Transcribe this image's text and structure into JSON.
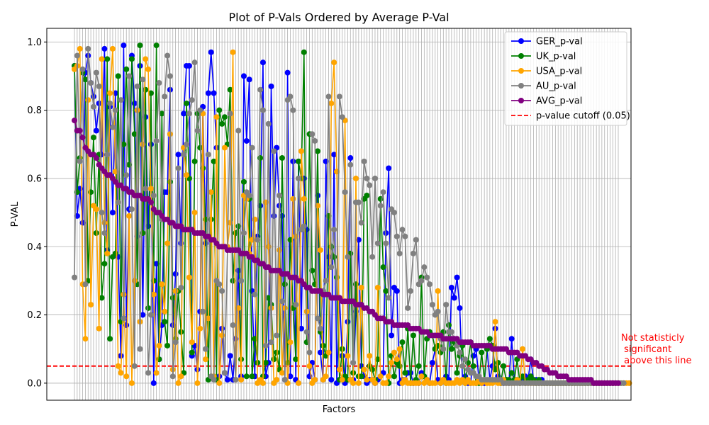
{
  "chart_data": {
    "type": "line",
    "title": "Plot of P-Vals Ordered by Average P-Val",
    "xlabel": "Factors",
    "ylabel": "P-VAL",
    "ylim": [
      -0.05,
      1.04
    ],
    "yticks": [
      "0.0",
      "0.2",
      "0.4",
      "0.6",
      "0.8",
      "1.0"
    ],
    "grid": true,
    "legend_position": "top-right",
    "n_factors": 200,
    "series": [
      {
        "name": "GER_p-val",
        "color": "#0000ff",
        "values": [
          0.93,
          0.49,
          0.57,
          0.47,
          0.91,
          0.96,
          0.88,
          0.84,
          0.74,
          0.82,
          0.67,
          0.98,
          0.39,
          0.81,
          0.5,
          0.85,
          0.37,
          0.08,
          0.99,
          0.17,
          0.51,
          0.96,
          0.82,
          0.43,
          0.93,
          0.2,
          0.78,
          0.46,
          0.7,
          0.0,
          0.35,
          0.07,
          0.17,
          0.56,
          0.56,
          0.86,
          0.17,
          0.32,
          0.67,
          0.41,
          0.79,
          0.93,
          0.93,
          0.08,
          0.11,
          0.04,
          0.21,
          0.81,
          0.41,
          0.85,
          0.97,
          0.85,
          0.69,
          0.02,
          0.16,
          0.03,
          0.01,
          0.08,
          0.01,
          0.13,
          0.33,
          0.02,
          0.9,
          0.71,
          0.89,
          0.27,
          0.02,
          0.43,
          0.52,
          0.94,
          0.02,
          0.06,
          0.87,
          0.49,
          0.69,
          0.52,
          0.49,
          0.01,
          0.91,
          0.02,
          0.65,
          0.01,
          0.65,
          0.16,
          0.6,
          0.45,
          0.02,
          0.06,
          0.01,
          0.55,
          0.09,
          0.01,
          0.65,
          0.37,
          0.01,
          0.67,
          0.0,
          0.25,
          0.08,
          0.0,
          0.18,
          0.66,
          0.01,
          0.21,
          0.42,
          0.05,
          0.02,
          0.0,
          0.01,
          0.01,
          0.0,
          0.01,
          0.02,
          0.03,
          0.44,
          0.63,
          0.14,
          0.28,
          0.27,
          0.0,
          0.01,
          0.01,
          0.03,
          0.03,
          0.0,
          0.01,
          0.0,
          0.03,
          0.02,
          0.01,
          0.0,
          0.06,
          0.1,
          0.01,
          0.0,
          0.01,
          0.02,
          0.01,
          0.28,
          0.25,
          0.31,
          0.22,
          0.01,
          0.02,
          0.0,
          0.0,
          0.08,
          0.1,
          0.01,
          0.0,
          0.0,
          0.1,
          0.01,
          0.05,
          0.16,
          0.02,
          0.0,
          0.0,
          0.01,
          0.0,
          0.13,
          0.01,
          0.01,
          0.01,
          0.01,
          0.02,
          0.01,
          0.07,
          0.01,
          0.01,
          0.0,
          0.01,
          0.0,
          0.0,
          0.0,
          0.0,
          0.0,
          0.0,
          0.0,
          0.0,
          0.0,
          0.0,
          0.0,
          0.0,
          0.0,
          0.0,
          0.0,
          0.0,
          0.0,
          0.0,
          0.0,
          0.0,
          0.0,
          0.0,
          0.0,
          0.0,
          0.0,
          0.0
        ]
      },
      {
        "name": "UK_p-val",
        "color": "#008000",
        "values": [
          0.93,
          0.56,
          0.66,
          0.91,
          0.89,
          0.3,
          0.56,
          0.72,
          0.44,
          0.67,
          0.25,
          0.35,
          0.95,
          0.13,
          0.37,
          0.38,
          0.9,
          0.18,
          0.7,
          0.92,
          0.64,
          0.95,
          0.73,
          0.29,
          0.99,
          0.44,
          0.86,
          0.22,
          0.85,
          0.3,
          0.99,
          0.07,
          0.79,
          0.18,
          0.11,
          0.59,
          0.25,
          0.13,
          0.27,
          0.15,
          0.03,
          0.82,
          0.6,
          0.09,
          0.65,
          0.79,
          0.69,
          0.63,
          0.48,
          0.01,
          0.48,
          0.65,
          0.01,
          0.8,
          0.76,
          0.78,
          0.7,
          0.86,
          0.3,
          0.44,
          0.46,
          0.07,
          0.59,
          0.02,
          0.54,
          0.02,
          0.13,
          0.06,
          0.66,
          0.02,
          0.06,
          0.25,
          0.23,
          0.07,
          0.09,
          0.04,
          0.66,
          0.29,
          0.06,
          0.42,
          0.22,
          0.07,
          0.65,
          0.6,
          0.97,
          0.12,
          0.73,
          0.33,
          0.29,
          0.68,
          0.15,
          0.11,
          0.08,
          0.49,
          0.4,
          0.37,
          0.31,
          0.01,
          0.1,
          0.02,
          0.01,
          0.38,
          0.03,
          0.29,
          0.02,
          0.02,
          0.54,
          0.55,
          0.05,
          0.04,
          0.01,
          0.07,
          0.54,
          0.34,
          0.27,
          0.0,
          0.08,
          0.02,
          0.06,
          0.05,
          0.12,
          0.03,
          0.16,
          0.0,
          0.14,
          0.01,
          0.05,
          0.31,
          0.02,
          0.13,
          0.15,
          0.14,
          0.1,
          0.11,
          0.09,
          0.15,
          0.0,
          0.17,
          0.1,
          0.12,
          0.03,
          0.08,
          0.11,
          0.0,
          0.06,
          0.12,
          0.05,
          0.0,
          0.0,
          0.09,
          0.01,
          0.1,
          0.13,
          0.11,
          0.04,
          0.06,
          0.0,
          0.05,
          0.01,
          0.01,
          0.03,
          0.01,
          0.07,
          0.0,
          0.02,
          0.0,
          0.01,
          0.02,
          0.01,
          0.0,
          0.01,
          0.0,
          0.0,
          0.0,
          0.0,
          0.0,
          0.0,
          0.0,
          0.0,
          0.0,
          0.0,
          0.0,
          0.0,
          0.0,
          0.0,
          0.0,
          0.0,
          0.0,
          0.0,
          0.0,
          0.0,
          0.0,
          0.0,
          0.0,
          0.0,
          0.0,
          0.0,
          0.0
        ]
      },
      {
        "name": "USA_p-val",
        "color": "#ffa500",
        "values": [
          0.92,
          0.93,
          0.98,
          0.29,
          0.13,
          0.83,
          0.23,
          0.52,
          0.51,
          0.16,
          0.95,
          0.47,
          0.38,
          0.85,
          0.98,
          0.62,
          0.05,
          0.03,
          0.26,
          0.02,
          0.49,
          0.0,
          0.3,
          0.8,
          0.18,
          0.7,
          0.95,
          0.92,
          0.57,
          0.26,
          0.03,
          0.11,
          0.29,
          0.21,
          0.41,
          0.73,
          0.04,
          0.27,
          0.0,
          0.02,
          0.69,
          0.61,
          0.31,
          0.12,
          0.5,
          0.0,
          0.16,
          0.79,
          0.07,
          0.19,
          0.56,
          0.02,
          0.78,
          0.0,
          0.14,
          0.69,
          0.4,
          0.47,
          0.97,
          0.01,
          0.22,
          0.01,
          0.55,
          0.54,
          0.38,
          0.42,
          0.48,
          0.0,
          0.01,
          0.0,
          0.53,
          0.4,
          0.22,
          0.0,
          0.01,
          0.39,
          0.03,
          0.22,
          0.0,
          0.12,
          0.54,
          0.43,
          0.0,
          0.68,
          0.54,
          0.21,
          0.05,
          0.0,
          0.01,
          0.52,
          0.39,
          0.01,
          0.02,
          0.09,
          0.82,
          0.94,
          0.62,
          0.04,
          0.01,
          0.77,
          0.08,
          0.01,
          0.0,
          0.6,
          0.0,
          0.28,
          0.04,
          0.01,
          0.08,
          0.01,
          0.0,
          0.28,
          0.02,
          0.0,
          0.0,
          0.02,
          0.06,
          0.09,
          0.07,
          0.1,
          0.0,
          0.01,
          0.0,
          0.0,
          0.0,
          0.0,
          0.0,
          0.02,
          0.0,
          0.01,
          0.0,
          0.0,
          0.0,
          0.27,
          0.0,
          0.01,
          0.0,
          0.0,
          0.0,
          0.0,
          0.01,
          0.0,
          0.01,
          0.0,
          0.01,
          0.0,
          0.0,
          0.0,
          0.01,
          0.0,
          0.01,
          0.0,
          0.0,
          0.0,
          0.18,
          0.0,
          0.0,
          0.01,
          0.0,
          0.0,
          0.0,
          0.0,
          0.01,
          0.0,
          0.1,
          0.0,
          0.0,
          0.0,
          0.0,
          0.0,
          0.0,
          0.0,
          0.0,
          0.0,
          0.0,
          0.0,
          0.0,
          0.0,
          0.0,
          0.0,
          0.0,
          0.0,
          0.0,
          0.0,
          0.0,
          0.0,
          0.0,
          0.0,
          0.0,
          0.0,
          0.0,
          0.0,
          0.0,
          0.0,
          0.0,
          0.0,
          0.0,
          0.0,
          0.0,
          0.0,
          0.0,
          0.0,
          0.0,
          0.0
        ]
      },
      {
        "name": "AU_p-val",
        "color": "#808080",
        "values": [
          0.31,
          0.96,
          0.65,
          0.92,
          0.29,
          0.98,
          0.88,
          0.81,
          0.91,
          0.87,
          0.5,
          0.44,
          0.67,
          0.82,
          0.75,
          0.8,
          0.53,
          0.83,
          0.19,
          0.61,
          0.9,
          0.51,
          0.05,
          0.87,
          0.1,
          0.89,
          0.57,
          0.03,
          0.2,
          0.55,
          0.71,
          0.88,
          0.48,
          0.84,
          0.96,
          0.9,
          0.02,
          0.12,
          0.63,
          0.28,
          0.67,
          0.7,
          0.79,
          0.83,
          0.94,
          0.74,
          0.8,
          0.21,
          0.1,
          0.67,
          0.02,
          0.01,
          0.3,
          0.29,
          0.27,
          0.03,
          0.39,
          0.79,
          0.17,
          0.01,
          0.74,
          0.3,
          0.44,
          0.56,
          0.55,
          0.69,
          0.26,
          0.42,
          0.86,
          0.8,
          0.11,
          0.76,
          0.12,
          0.68,
          0.14,
          0.55,
          0.24,
          0.01,
          0.83,
          0.84,
          0.8,
          0.23,
          0.6,
          0.45,
          0.46,
          0.15,
          0.09,
          0.73,
          0.71,
          0.19,
          0.16,
          0.27,
          0.3,
          0.84,
          0.34,
          0.45,
          0.25,
          0.84,
          0.78,
          0.56,
          0.37,
          0.64,
          0.06,
          0.53,
          0.53,
          0.47,
          0.65,
          0.6,
          0.58,
          0.37,
          0.6,
          0.41,
          0.52,
          0.56,
          0.41,
          0.25,
          0.51,
          0.5,
          0.43,
          0.38,
          0.45,
          0.43,
          0.22,
          0.27,
          0.38,
          0.42,
          0.29,
          0.3,
          0.34,
          0.31,
          0.29,
          0.23,
          0.2,
          0.21,
          0.13,
          0.1,
          0.23,
          0.15,
          0.15,
          0.13,
          0.11,
          0.09,
          0.05,
          0.07,
          0.04,
          0.03,
          0.03,
          0.02,
          0.02,
          0.01,
          0.01,
          0.01,
          0.01,
          0.01,
          0.01,
          0.01,
          0.01,
          0.0,
          0.0,
          0.0,
          0.0,
          0.0,
          0.0,
          0.0,
          0.0,
          0.0,
          0.0,
          0.0,
          0.0,
          0.0,
          0.0,
          0.0,
          0.0,
          0.0,
          0.0,
          0.0,
          0.0,
          0.0,
          0.0,
          0.0,
          0.0,
          0.0,
          0.0,
          0.0,
          0.0,
          0.0,
          0.0,
          0.0,
          0.0,
          0.0,
          0.0,
          0.0,
          0.0,
          0.0,
          0.0,
          0.0,
          0.0,
          0.0,
          0.0,
          0.0,
          0.0,
          0.0
        ]
      },
      {
        "name": "AVG_p-val",
        "color": "#800080",
        "values": [
          0.77,
          0.74,
          0.74,
          0.72,
          0.69,
          0.68,
          0.67,
          0.67,
          0.66,
          0.64,
          0.63,
          0.62,
          0.61,
          0.61,
          0.6,
          0.59,
          0.58,
          0.58,
          0.57,
          0.57,
          0.56,
          0.56,
          0.55,
          0.55,
          0.55,
          0.54,
          0.54,
          0.54,
          0.53,
          0.51,
          0.5,
          0.5,
          0.49,
          0.48,
          0.48,
          0.47,
          0.47,
          0.46,
          0.46,
          0.46,
          0.45,
          0.45,
          0.45,
          0.45,
          0.44,
          0.44,
          0.44,
          0.44,
          0.43,
          0.43,
          0.42,
          0.42,
          0.41,
          0.4,
          0.4,
          0.4,
          0.39,
          0.39,
          0.39,
          0.39,
          0.39,
          0.38,
          0.38,
          0.38,
          0.37,
          0.37,
          0.36,
          0.36,
          0.35,
          0.35,
          0.34,
          0.34,
          0.33,
          0.33,
          0.33,
          0.33,
          0.32,
          0.32,
          0.32,
          0.31,
          0.31,
          0.31,
          0.3,
          0.3,
          0.29,
          0.28,
          0.28,
          0.27,
          0.27,
          0.27,
          0.27,
          0.26,
          0.26,
          0.26,
          0.25,
          0.25,
          0.25,
          0.25,
          0.24,
          0.24,
          0.24,
          0.24,
          0.24,
          0.23,
          0.23,
          0.23,
          0.22,
          0.22,
          0.21,
          0.21,
          0.2,
          0.19,
          0.19,
          0.19,
          0.18,
          0.18,
          0.18,
          0.17,
          0.17,
          0.17,
          0.17,
          0.17,
          0.17,
          0.16,
          0.16,
          0.16,
          0.16,
          0.15,
          0.15,
          0.15,
          0.14,
          0.14,
          0.14,
          0.14,
          0.14,
          0.13,
          0.13,
          0.13,
          0.13,
          0.13,
          0.13,
          0.12,
          0.12,
          0.12,
          0.12,
          0.12,
          0.11,
          0.11,
          0.11,
          0.11,
          0.11,
          0.11,
          0.11,
          0.1,
          0.1,
          0.1,
          0.1,
          0.1,
          0.1,
          0.09,
          0.09,
          0.09,
          0.09,
          0.08,
          0.08,
          0.08,
          0.07,
          0.07,
          0.06,
          0.06,
          0.05,
          0.05,
          0.04,
          0.04,
          0.03,
          0.03,
          0.03,
          0.02,
          0.02,
          0.02,
          0.02,
          0.01,
          0.01,
          0.01,
          0.01,
          0.01,
          0.01,
          0.01,
          0.01,
          0.01,
          0.0,
          0.0,
          0.0,
          0.0,
          0.0,
          0.0,
          0.0,
          0.0,
          0.0,
          0.0
        ]
      }
    ],
    "cutoff": {
      "label": "p-value cutoff (0.05)",
      "value": 0.05,
      "color": "#ff0000"
    },
    "annotation": {
      "lines": [
        "Not statisticly",
        " significant",
        " above this line"
      ],
      "color": "#ff0000"
    }
  }
}
